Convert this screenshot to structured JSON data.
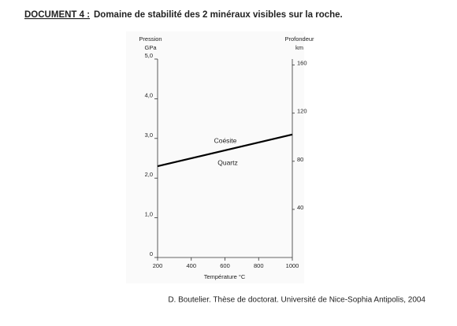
{
  "header": {
    "label": "DOCUMENT 4 :",
    "title": "Domaine de stabilité des 2 minéraux visibles sur la roche."
  },
  "source": "D. Boutelier. Thèse de doctorat. Université de Nice-Sophia Antipolis, 2004",
  "chart_data": {
    "type": "line",
    "xlabel": "Température °C",
    "ylabel": "Pression",
    "yunit": "GPa",
    "y2label": "Profondeur",
    "y2unit": "km",
    "x": [
      200,
      1000
    ],
    "values": [
      2.3,
      3.1
    ],
    "color": "#000000",
    "xlim": [
      200,
      1000
    ],
    "xticks": [
      200,
      400,
      600,
      800,
      1000
    ],
    "ylim": [
      0,
      5
    ],
    "yticks": [
      0,
      {
        "value": 1,
        "label": "1,0"
      },
      {
        "value": 2,
        "label": "2,0"
      },
      {
        "value": 3,
        "label": "3,0"
      },
      {
        "value": 4,
        "label": "4,0"
      },
      {
        "value": 5,
        "label": "5,0"
      }
    ],
    "y2lim": [
      0,
      165
    ],
    "y2ticks": [
      40,
      80,
      120,
      160
    ],
    "annotations": [
      "Coésite",
      "Quartz"
    ]
  }
}
